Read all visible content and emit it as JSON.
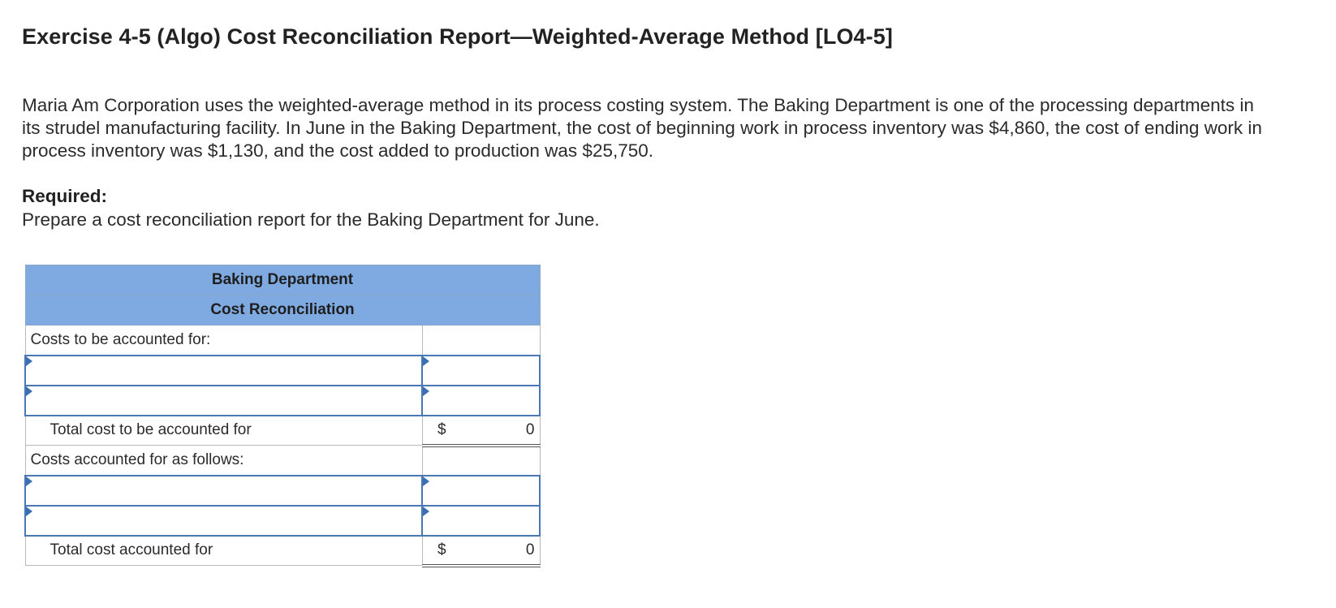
{
  "page": {
    "title": "Exercise 4-5 (Algo) Cost Reconciliation Report—Weighted-Average Method [LO4-5]",
    "intro": "Maria Am Corporation uses the weighted-average method in its process costing system. The Baking Department is one of the processing departments in its strudel manufacturing facility. In June in the Baking Department, the cost of beginning work in process inventory was $4,860, the cost of ending work in process inventory was $1,130, and the cost added to production was $25,750.",
    "required_heading": "Required:",
    "required_text": "Prepare a cost reconciliation report for the Baking Department for June."
  },
  "report": {
    "header_line1": "Baking Department",
    "header_line2": "Cost Reconciliation",
    "section1_label": "Costs to be accounted for:",
    "section1_inputs": [
      {
        "label_value": "",
        "amount_value": ""
      },
      {
        "label_value": "",
        "amount_value": ""
      }
    ],
    "total1_label": "Total cost to be accounted for",
    "total1_currency": "$",
    "total1_value": "0",
    "section2_label": "Costs accounted for as follows:",
    "section2_inputs": [
      {
        "label_value": "",
        "amount_value": ""
      },
      {
        "label_value": "",
        "amount_value": ""
      }
    ],
    "total2_label": "Total cost accounted for",
    "total2_currency": "$",
    "total2_value": "0"
  },
  "colors": {
    "header_bg": "#7eaae1",
    "input_border": "#4a78b4"
  }
}
